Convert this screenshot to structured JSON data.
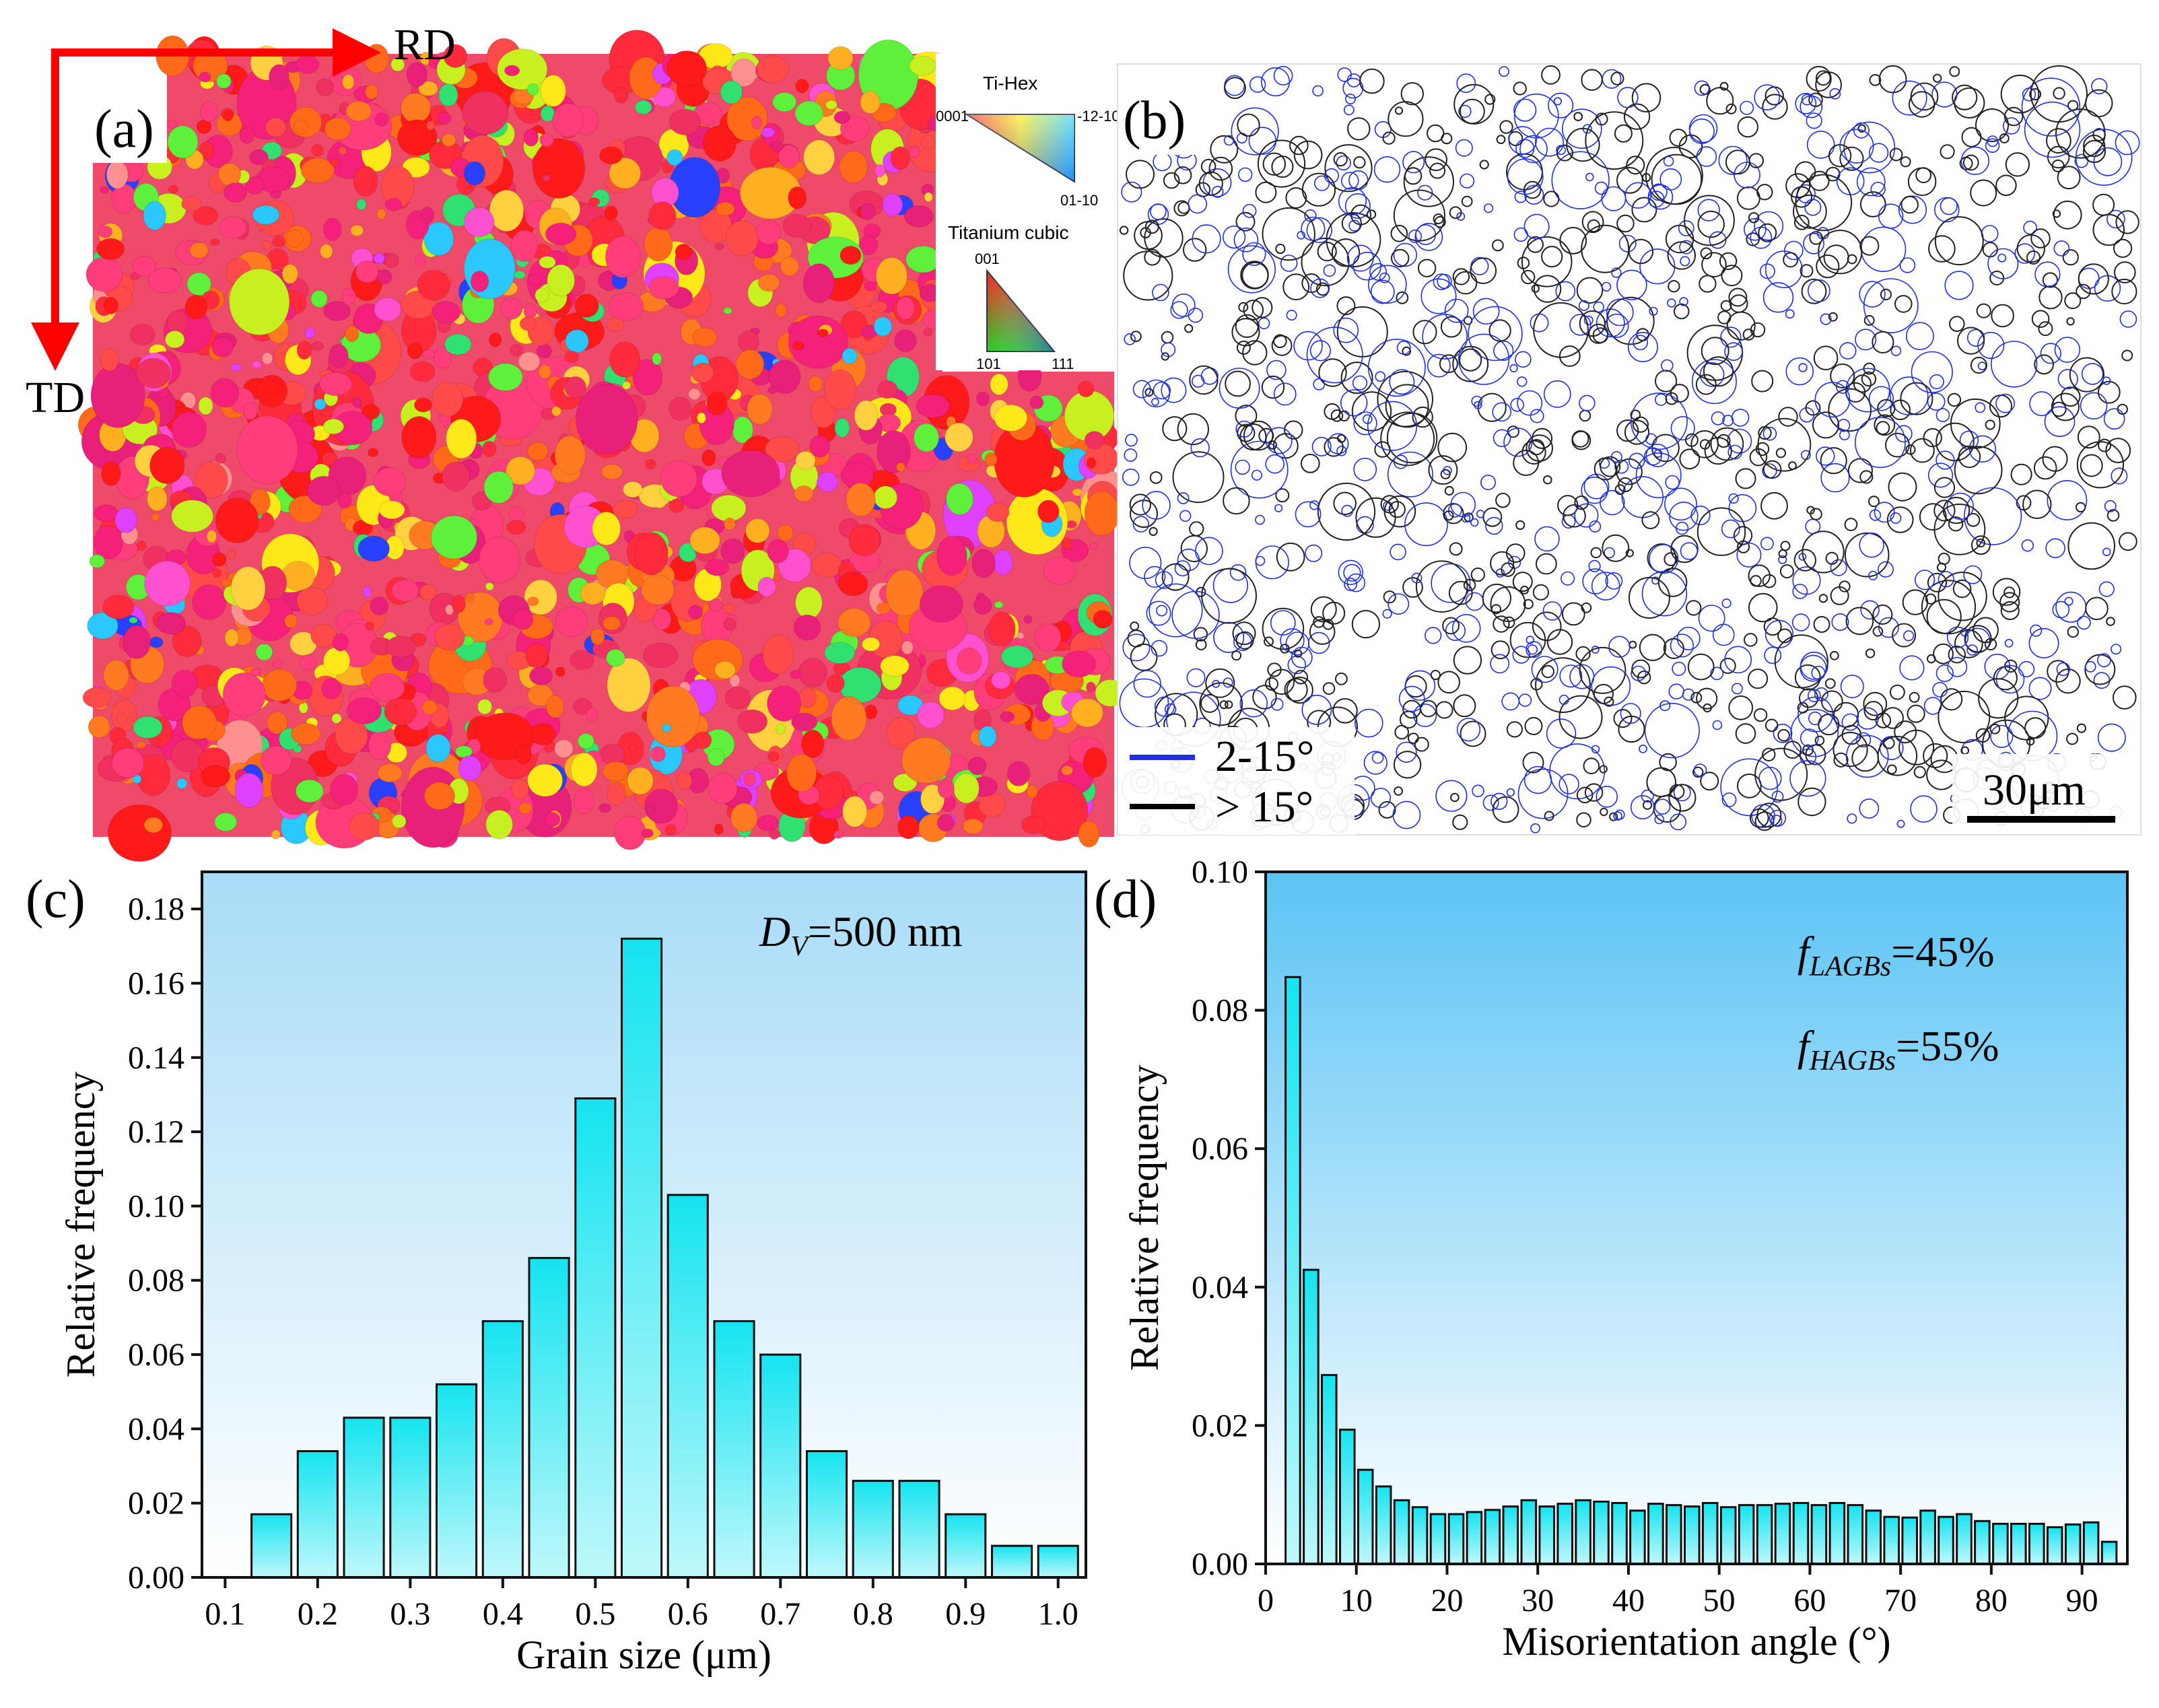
{
  "axes_arrows": {
    "rd": "RD",
    "td": "TD"
  },
  "panel_a": {
    "label": "(a)",
    "legend": {
      "hex_title": "Ti-Hex",
      "hex_corner_left": "0001",
      "hex_corner_right": "-12-10",
      "hex_corner_bottom": "01-10",
      "cubic_title": "Titanium cubic",
      "cubic_top": "001",
      "cubic_left": "101",
      "cubic_right": "111"
    }
  },
  "panel_b": {
    "label": "(b)",
    "legend": [
      {
        "label": "2-15°",
        "color": "#1f2fe0"
      },
      {
        "label": "> 15°",
        "color": "#000000"
      }
    ],
    "scale_bar": "30μm"
  },
  "chart_data": [
    {
      "panel": "(c)",
      "type": "bar",
      "xlabel": "Grain size (μm)",
      "ylabel": "Relative frequency",
      "annotation": {
        "symbol": "D",
        "subscript": "V",
        "text": "=500 nm"
      },
      "xlim": [
        0.075,
        1.03
      ],
      "ylim": [
        0,
        0.19
      ],
      "xticks": [
        "0.1",
        "0.2",
        "0.3",
        "0.4",
        "0.5",
        "0.6",
        "0.7",
        "0.8",
        "0.9",
        "1.0"
      ],
      "yticks": [
        "0.00",
        "0.02",
        "0.04",
        "0.06",
        "0.08",
        "0.10",
        "0.12",
        "0.14",
        "0.16",
        "0.18"
      ],
      "bar_width": 0.043,
      "x": [
        0.15,
        0.2,
        0.25,
        0.3,
        0.35,
        0.4,
        0.45,
        0.5,
        0.55,
        0.6,
        0.65,
        0.7,
        0.75,
        0.8,
        0.85,
        0.9,
        0.95,
        1.0
      ],
      "values": [
        0.017,
        0.034,
        0.043,
        0.043,
        0.052,
        0.069,
        0.086,
        0.129,
        0.172,
        0.103,
        0.069,
        0.06,
        0.034,
        0.026,
        0.026,
        0.017,
        0.0085,
        0.0085
      ],
      "colors": {
        "bar_top": "#14e4f0",
        "bar_bottom": "#bff8fb",
        "bg_top": "#a8dcf7",
        "bg_bottom": "#ffffff"
      }
    },
    {
      "panel": "(d)",
      "type": "bar",
      "xlabel": "Misorientation angle (°)",
      "ylabel": "Relative frequency",
      "annotations": [
        {
          "symbol": "f",
          "subscript": "LAGBs",
          "text": "=45%"
        },
        {
          "symbol": "f",
          "subscript": "HAGBs",
          "text": "=55%"
        }
      ],
      "xlim": [
        0,
        95
      ],
      "ylim": [
        0,
        0.1
      ],
      "xticks": [
        "0",
        "10",
        "20",
        "30",
        "40",
        "50",
        "60",
        "70",
        "80",
        "90"
      ],
      "yticks": [
        "0.00",
        "0.02",
        "0.04",
        "0.06",
        "0.08",
        "0.10"
      ],
      "bar_width": 1.6,
      "x": [
        3,
        5,
        7,
        9,
        11,
        13,
        15,
        17,
        19,
        21,
        23,
        25,
        27,
        29,
        31,
        33,
        35,
        37,
        39,
        41,
        43,
        45,
        47,
        49,
        51,
        53,
        55,
        57,
        59,
        61,
        63,
        65,
        67,
        69,
        71,
        73,
        75,
        77,
        79,
        81,
        83,
        85,
        87,
        89,
        91,
        93
      ],
      "values": [
        0.0848,
        0.0425,
        0.0273,
        0.0194,
        0.0136,
        0.0112,
        0.0092,
        0.0082,
        0.0072,
        0.0072,
        0.0075,
        0.0078,
        0.0083,
        0.0092,
        0.0083,
        0.0087,
        0.0092,
        0.009,
        0.0088,
        0.0077,
        0.0087,
        0.0085,
        0.0083,
        0.0088,
        0.0082,
        0.0085,
        0.0085,
        0.0087,
        0.0088,
        0.0085,
        0.0088,
        0.0085,
        0.0077,
        0.0068,
        0.0067,
        0.0077,
        0.0068,
        0.0072,
        0.0062,
        0.0058,
        0.0058,
        0.0058,
        0.0053,
        0.0057,
        0.006,
        0.0032
      ],
      "colors": {
        "bar_top": "#14e4f0",
        "bar_bottom": "#bff8fb",
        "bg_top": "#5bc4f5",
        "bg_bottom": "#ffffff"
      }
    }
  ]
}
